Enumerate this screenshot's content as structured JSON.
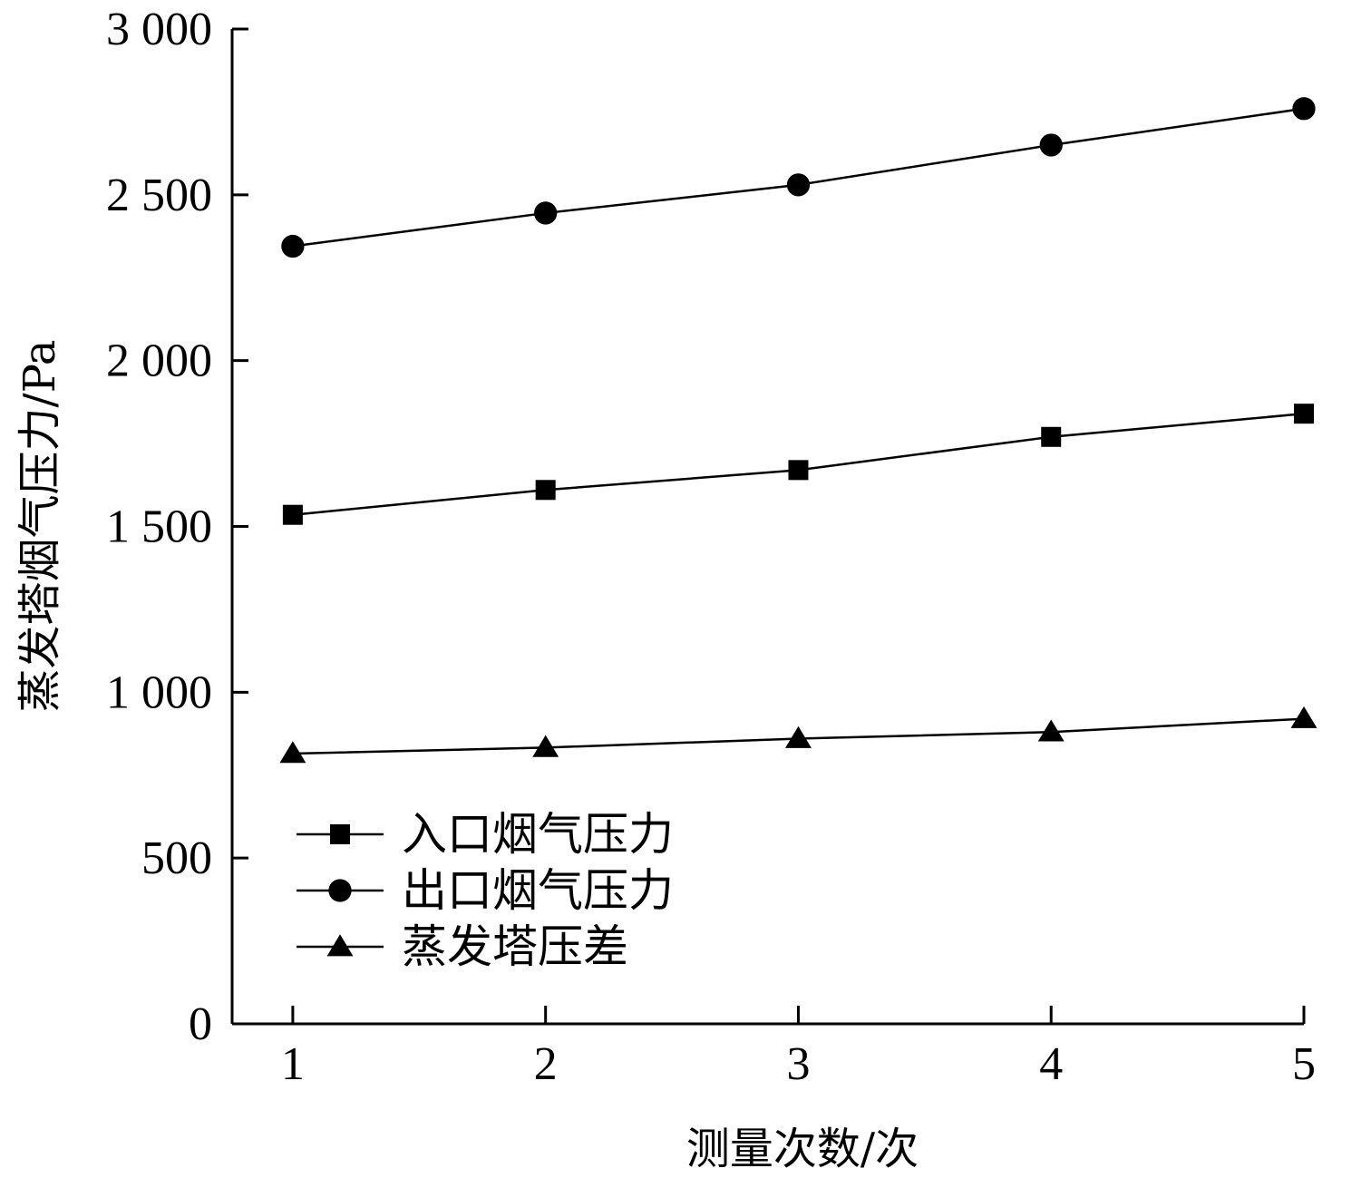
{
  "chart_data": {
    "type": "line",
    "xlabel": "测量次数/次",
    "ylabel": "蒸发塔烟气压力/Pa",
    "x": [
      1,
      2,
      3,
      4,
      5
    ],
    "xlim": [
      0.76,
      5
    ],
    "ylim": [
      0,
      3000
    ],
    "x_ticks": [
      1,
      2,
      3,
      4,
      5
    ],
    "x_tick_labels": [
      "1",
      "2",
      "3",
      "4",
      "5"
    ],
    "y_ticks": [
      0,
      500,
      1000,
      1500,
      2000,
      2500,
      3000
    ],
    "y_tick_labels": [
      "0",
      "500",
      "1 000",
      "1 500",
      "2 000",
      "2 500",
      "3 000"
    ],
    "grid": false,
    "legend_position": "bottom-left",
    "series": [
      {
        "name": "入口烟气压力",
        "marker": "square",
        "color": "#000000",
        "values": [
          1535,
          1610,
          1670,
          1770,
          1840
        ]
      },
      {
        "name": "出口烟气压力",
        "marker": "circle",
        "color": "#000000",
        "values": [
          2345,
          2445,
          2530,
          2650,
          2760
        ]
      },
      {
        "name": "蒸发塔压差",
        "marker": "triangle",
        "color": "#000000",
        "values": [
          815,
          833,
          860,
          880,
          920
        ]
      }
    ]
  }
}
